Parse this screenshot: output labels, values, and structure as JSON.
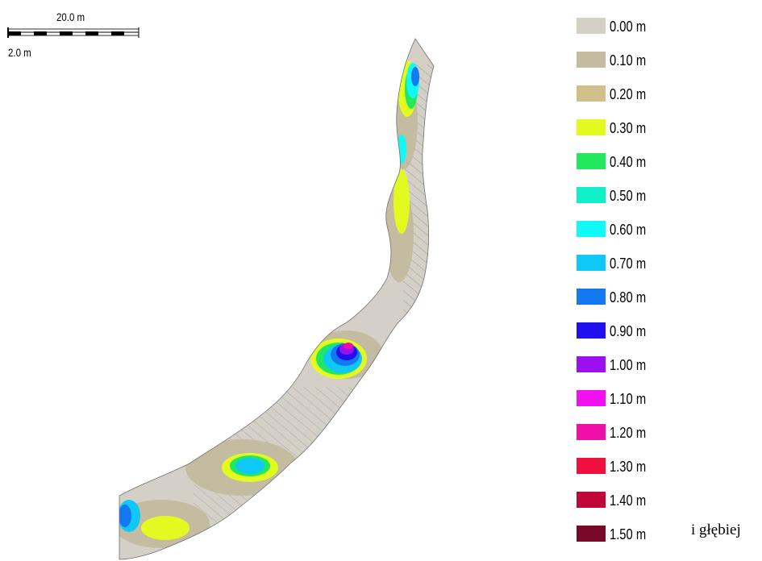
{
  "scale_bar": {
    "distance_label": "20.0 m",
    "interval_label": "2.0 m"
  },
  "legend": {
    "items": [
      {
        "label": "0.00 m",
        "color": "#d4d0c8"
      },
      {
        "label": "0.10 m",
        "color": "#c4bca0"
      },
      {
        "label": "0.20 m",
        "color": "#d2c08a"
      },
      {
        "label": "0.30 m",
        "color": "#e2fa20"
      },
      {
        "label": "0.40 m",
        "color": "#22e860"
      },
      {
        "label": "0.50 m",
        "color": "#10f0c8"
      },
      {
        "label": "0.60 m",
        "color": "#10f8f8"
      },
      {
        "label": "0.70 m",
        "color": "#10c8f8"
      },
      {
        "label": "0.80 m",
        "color": "#1478f0"
      },
      {
        "label": "0.90 m",
        "color": "#2010f0"
      },
      {
        "label": "1.00 m",
        "color": "#9c10f0"
      },
      {
        "label": "1.10 m",
        "color": "#f010f0"
      },
      {
        "label": "1.20 m",
        "color": "#f010a8"
      },
      {
        "label": "1.30 m",
        "color": "#f01040"
      },
      {
        "label": "1.40 m",
        "color": "#c00838"
      },
      {
        "label": "1.50 m",
        "color": "#780828"
      }
    ],
    "overflow_note": "i głębiej"
  }
}
